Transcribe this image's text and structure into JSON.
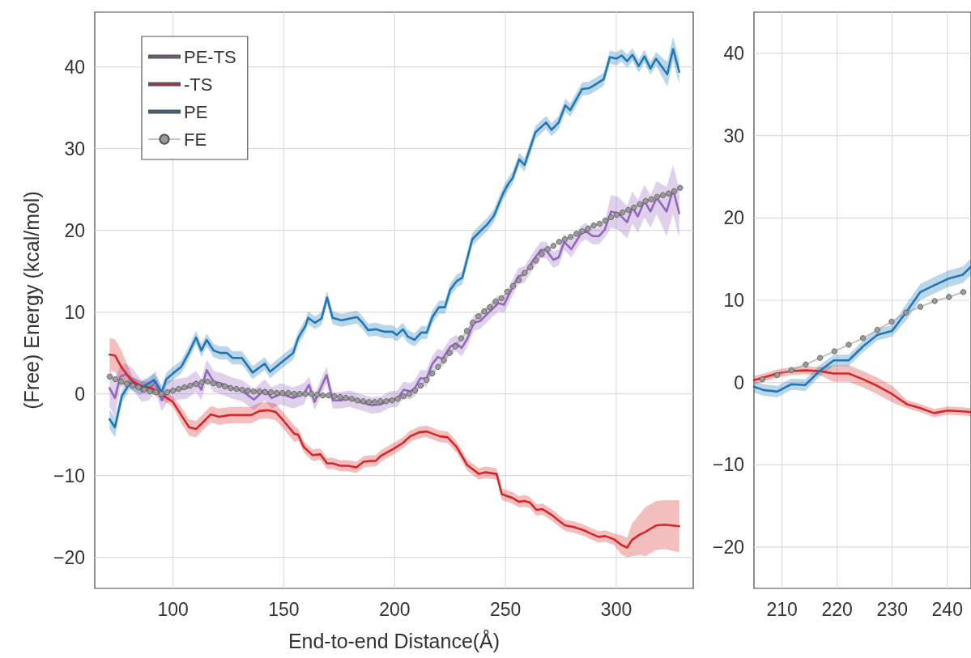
{
  "chart_data": [
    {
      "type": "line",
      "xlabel": "End-to-end Distance(Å)",
      "ylabel": "(Free) Energy (kcal/mol)",
      "xlim": [
        64.7,
        334.7
      ],
      "xticks": [
        100,
        150,
        200,
        250,
        300
      ],
      "ylim": [
        -23.8,
        46.7
      ],
      "yticks": [
        -20,
        -10,
        0,
        10,
        20,
        30,
        40
      ],
      "grid": true,
      "legend": "top left",
      "marker": "none",
      "line_style": "solid",
      "series": [
        {
          "name": "PE-TS",
          "color": "#9467bd",
          "x": [
            71.4,
            73.8,
            76.2,
            78.7,
            81.7,
            86.0,
            89.0,
            92.1,
            94.9,
            97.6,
            101.2,
            106.1,
            110.4,
            112.8,
            115.2,
            118.3,
            122.5,
            126.8,
            131.1,
            136.5,
            141.4,
            144.5,
            148.7,
            154.2,
            159,
            161.4,
            163.9,
            166.3,
            169.3,
            172.1,
            175.5,
            179.6,
            184.6,
            189.6,
            193.7,
            197.8,
            201.2,
            204.1,
            207,
            209.1,
            211.6,
            214.4,
            216.9,
            219.4,
            221.6,
            225.2,
            227.7,
            230.2,
            232.7,
            235.7,
            238.5,
            243.4,
            246.8,
            249.3,
            251.3,
            255.8,
            258.6,
            261.9,
            265.9,
            268.3,
            271.6,
            274,
            276.5,
            279.7,
            283.8,
            286.2,
            289.4,
            292.2,
            294.8,
            297.6,
            300.8,
            304.9,
            307.3,
            309.7,
            312.7,
            315.4,
            318.2,
            322.7,
            325.6,
            328.4
          ],
          "values": [
            0.7,
            -0.5,
            2.1,
            2.4,
            1.8,
            0.3,
            0.5,
            1.5,
            -0.8,
            0.3,
            0.5,
            0.7,
            1.5,
            0.5,
            2.9,
            1.5,
            1.2,
            0.7,
            0.4,
            -0.7,
            0.5,
            -0.5,
            0,
            -0.5,
            0,
            1.1,
            -1.0,
            0.5,
            2.3,
            -0.8,
            -0.8,
            -0.6,
            -1.0,
            -1.4,
            -1.3,
            -0.7,
            -0.6,
            0.5,
            0.3,
            0.7,
            1.9,
            1.9,
            3.6,
            4.5,
            4.3,
            5.8,
            6.2,
            5.6,
            6.7,
            8.7,
            8.9,
            10.2,
            11.1,
            10.9,
            12.0,
            14.4,
            14.6,
            16.1,
            17.6,
            17.6,
            16.4,
            16.7,
            18.6,
            17.7,
            19.5,
            19.9,
            19.3,
            19.3,
            20.1,
            22.3,
            22.1,
            21.0,
            22.8,
            21.7,
            23.6,
            22.3,
            24.0,
            22.3,
            25.0,
            22.1
          ],
          "upper": [
            3.0,
            1.8,
            3.4,
            3.7,
            3.1,
            1.6,
            1.8,
            2.8,
            0.5,
            1.6,
            1.8,
            2.0,
            2.8,
            1.8,
            4.2,
            2.8,
            2.5,
            2.0,
            1.7,
            0.6,
            1.8,
            0.8,
            1.3,
            0.8,
            1.3,
            2.1,
            0,
            1.5,
            3.3,
            0.2,
            0.2,
            0.4,
            0,
            -0.4,
            -0.3,
            0.3,
            0.4,
            1.5,
            1.3,
            1.7,
            2.9,
            2.9,
            4.6,
            5.5,
            5.3,
            6.8,
            7.2,
            6.6,
            7.7,
            9.7,
            9.9,
            11.2,
            12.1,
            11.9,
            13.0,
            15.4,
            15.6,
            17.1,
            18.6,
            18.6,
            17.4,
            17.7,
            19.6,
            18.7,
            20.5,
            20.9,
            20.3,
            20.3,
            21.1,
            24.3,
            24.1,
            23.0,
            24.8,
            23.7,
            25.6,
            24.3,
            26.0,
            25.3,
            28.0,
            25.1
          ],
          "lower": [
            -1.6,
            -2.8,
            0.8,
            1.1,
            0.5,
            -1.0,
            -0.8,
            0.2,
            -2.1,
            -1.0,
            -0.8,
            -0.6,
            0.2,
            -0.8,
            1.6,
            0.2,
            -0.1,
            -0.6,
            -0.9,
            -2.0,
            -0.8,
            -1.8,
            -1.3,
            -1.8,
            -1.3,
            0.1,
            -2.0,
            -0.5,
            1.3,
            -1.8,
            -1.8,
            -1.6,
            -2.0,
            -2.4,
            -2.3,
            -1.7,
            -1.6,
            -0.5,
            -0.7,
            -0.3,
            0.9,
            0.9,
            2.6,
            3.5,
            3.3,
            4.8,
            5.2,
            4.6,
            5.7,
            7.7,
            7.9,
            9.2,
            10.1,
            9.9,
            11.0,
            13.4,
            13.6,
            15.1,
            16.6,
            16.6,
            15.4,
            15.7,
            17.6,
            16.7,
            18.5,
            18.9,
            18.3,
            18.3,
            19.1,
            20.3,
            20.1,
            19.0,
            20.8,
            19.7,
            21.6,
            20.3,
            22.0,
            19.3,
            22.0,
            19.1
          ]
        },
        {
          "name": "-TS",
          "color": "#d62728",
          "x": [
            71.4,
            73.8,
            76.9,
            81.7,
            85.4,
            90.3,
            94.5,
            100,
            103.7,
            107.3,
            110.4,
            113.4,
            117.1,
            120.7,
            125.6,
            130.5,
            135.3,
            139,
            142.6,
            146.3,
            149.9,
            154.8,
            156.5,
            159,
            163,
            166.5,
            169.5,
            172,
            175.5,
            179,
            182.7,
            186,
            189,
            191.5,
            193.7,
            199.6,
            203.7,
            207,
            211,
            214.5,
            220.4,
            223.8,
            228,
            232.7,
            238,
            241,
            246,
            248.4,
            253,
            256,
            258.6,
            261,
            264,
            266.7,
            270.8,
            274,
            277,
            281,
            285.4,
            288.6,
            292,
            295,
            299,
            302.4,
            304.9,
            307,
            310.6,
            313,
            318,
            322,
            328.4
          ],
          "values": [
            4.8,
            4.7,
            3.2,
            1.5,
            1.0,
            0.7,
            0,
            -1.0,
            -2.6,
            -4.1,
            -4.3,
            -3.5,
            -2.5,
            -2.8,
            -2.6,
            -2.6,
            -2.6,
            -2.1,
            -2.0,
            -2.2,
            -3.3,
            -4.9,
            -5.0,
            -6.5,
            -7.5,
            -7.4,
            -8.5,
            -8.5,
            -8.8,
            -8.8,
            -9.0,
            -8.3,
            -8.2,
            -8.2,
            -7.6,
            -6.7,
            -6.0,
            -5.2,
            -4.7,
            -4.6,
            -5.2,
            -5.3,
            -6.5,
            -8.7,
            -9.8,
            -9.6,
            -9.8,
            -12.3,
            -12.7,
            -13.2,
            -13.1,
            -13.3,
            -14.2,
            -14.1,
            -14.8,
            -15.5,
            -16.1,
            -16.3,
            -16.7,
            -17.1,
            -17.5,
            -17.4,
            -17.8,
            -18.5,
            -18.8,
            -17.9,
            -17.2,
            -16.9,
            -16.1,
            -16.0,
            -16.2
          ],
          "upper": [
            6.8,
            6.7,
            5.2,
            2.1,
            1.6,
            1.3,
            0.6,
            -0.4,
            -1.6,
            -3.1,
            -3.3,
            -2.5,
            -1.5,
            -1.8,
            -1.6,
            -1.6,
            -1.6,
            -1.1,
            -1.0,
            -1.2,
            -2.3,
            -3.9,
            -4.3,
            -5.8,
            -6.8,
            -6.7,
            -7.8,
            -7.8,
            -8.1,
            -8.1,
            -8.3,
            -7.6,
            -7.5,
            -7.5,
            -6.9,
            -6.0,
            -5.3,
            -4.5,
            -4.0,
            -3.9,
            -4.5,
            -4.6,
            -5.8,
            -8.0,
            -9.1,
            -8.9,
            -9.1,
            -11.6,
            -12.0,
            -12.5,
            -12.4,
            -12.6,
            -13.5,
            -13.4,
            -14.1,
            -14.8,
            -15.4,
            -15.6,
            -16.0,
            -16.4,
            -16.8,
            -16.7,
            -17.1,
            -17.3,
            -17.6,
            -15.9,
            -14.7,
            -13.9,
            -13.1,
            -13.0,
            -13.0
          ],
          "lower": [
            2.8,
            2.7,
            1.2,
            0.9,
            0.4,
            0.1,
            -0.6,
            -1.6,
            -3.6,
            -5.1,
            -5.3,
            -4.5,
            -3.5,
            -3.8,
            -3.6,
            -3.6,
            -3.6,
            -3.1,
            -3.0,
            -3.2,
            -4.3,
            -5.9,
            -5.7,
            -7.2,
            -8.2,
            -8.1,
            -9.2,
            -9.2,
            -9.5,
            -9.5,
            -9.7,
            -9.0,
            -8.9,
            -8.9,
            -8.3,
            -7.4,
            -6.7,
            -5.9,
            -5.4,
            -5.3,
            -5.9,
            -6.0,
            -7.2,
            -9.4,
            -10.5,
            -10.3,
            -10.5,
            -13.0,
            -13.4,
            -13.9,
            -13.8,
            -14.0,
            -14.9,
            -14.8,
            -15.5,
            -16.2,
            -16.8,
            -17.0,
            -17.4,
            -17.8,
            -18.2,
            -18.1,
            -18.5,
            -19.7,
            -20.0,
            -19.9,
            -19.7,
            -19.9,
            -19.1,
            -19.0,
            -19.4
          ]
        },
        {
          "name": "PE",
          "color": "#1f77b4",
          "x": [
            71.4,
            73.8,
            76.9,
            80.5,
            85.4,
            91.5,
            94.9,
            97,
            100,
            103.7,
            107.3,
            110.4,
            112.8,
            115.2,
            118.3,
            121.3,
            124.4,
            126.8,
            131.1,
            135.9,
            141.4,
            143.8,
            148.7,
            154.2,
            156.6,
            159.7,
            161,
            164,
            167,
            169.5,
            172,
            176,
            179.5,
            183,
            185.5,
            188,
            191.5,
            195.5,
            199,
            201,
            203.7,
            206,
            209,
            212,
            214.5,
            217,
            220,
            222.7,
            225,
            228,
            230.5,
            235,
            239,
            242,
            244.8,
            248.9,
            251.3,
            253.2,
            256.2,
            258.6,
            263.5,
            268.3,
            270.8,
            274,
            277,
            279.2,
            284.6,
            287.8,
            290.3,
            294.3,
            297.1,
            300,
            302.4,
            304.9,
            307.3,
            310.1,
            312.7,
            315.4,
            317.9,
            323,
            325.6,
            328.4
          ],
          "values": [
            -3.1,
            -4.1,
            -0.3,
            1.3,
            0.7,
            1.7,
            0.2,
            1.8,
            2.5,
            3.3,
            5.1,
            6.9,
            5.3,
            6.6,
            5.3,
            5.0,
            5.0,
            4.4,
            4.4,
            2.6,
            3.7,
            2.7,
            3.8,
            5.0,
            6.9,
            8.3,
            9.3,
            8.7,
            9.2,
            11.8,
            9.3,
            9.0,
            9.2,
            9.4,
            8.7,
            7.8,
            7.9,
            7.6,
            7.6,
            7.2,
            7.9,
            7.0,
            6.6,
            7.5,
            7.5,
            9.4,
            10.6,
            10.6,
            12.7,
            13.8,
            14.2,
            18.9,
            20.0,
            20.8,
            21.8,
            24.5,
            25.7,
            26.4,
            28.7,
            28.0,
            32.0,
            33.2,
            32.3,
            33.2,
            35.3,
            34.7,
            37.3,
            37.4,
            37.8,
            38.5,
            41.2,
            41.0,
            41.4,
            40.7,
            41.5,
            40.1,
            41.3,
            39.8,
            41.0,
            39.1,
            42.2,
            39.4
          ],
          "upper": [
            -1.9,
            -2.9,
            0.5,
            2.1,
            1.5,
            2.5,
            1.0,
            2.6,
            3.3,
            4.1,
            5.9,
            7.7,
            6.1,
            7.4,
            6.1,
            5.8,
            5.8,
            5.2,
            5.2,
            3.4,
            4.5,
            3.5,
            4.6,
            5.8,
            7.7,
            9.1,
            10.1,
            9.5,
            10.0,
            12.6,
            10.1,
            9.8,
            10.0,
            10.2,
            9.5,
            8.6,
            8.7,
            8.4,
            8.4,
            8.0,
            8.7,
            7.8,
            7.4,
            8.3,
            8.3,
            10.2,
            11.4,
            11.4,
            13.5,
            14.6,
            15.0,
            19.7,
            20.8,
            21.6,
            22.6,
            25.3,
            26.5,
            27.2,
            29.5,
            28.8,
            32.8,
            34.0,
            33.1,
            34.0,
            36.1,
            35.5,
            38.1,
            38.2,
            38.6,
            39.3,
            42.0,
            41.8,
            42.2,
            41.5,
            42.3,
            40.9,
            42.1,
            40.6,
            41.8,
            40.6,
            43.7,
            40.9
          ],
          "lower": [
            -4.3,
            -5.3,
            -1.1,
            0.5,
            -0.1,
            0.9,
            -0.6,
            1.0,
            1.7,
            2.5,
            4.3,
            6.1,
            4.5,
            5.8,
            4.5,
            4.2,
            4.2,
            3.6,
            3.6,
            1.8,
            2.9,
            1.9,
            3.0,
            4.2,
            6.1,
            7.5,
            8.5,
            7.9,
            8.4,
            11.0,
            8.5,
            8.2,
            8.4,
            8.6,
            7.9,
            7.0,
            7.1,
            6.8,
            6.8,
            6.4,
            7.1,
            6.2,
            5.8,
            6.7,
            6.7,
            8.6,
            9.8,
            9.8,
            11.9,
            13.0,
            13.4,
            18.1,
            19.2,
            20.0,
            21.0,
            23.7,
            24.9,
            25.6,
            27.9,
            27.2,
            31.2,
            32.4,
            31.5,
            32.4,
            34.5,
            33.9,
            36.5,
            36.6,
            37.0,
            37.7,
            40.4,
            40.2,
            40.6,
            39.9,
            40.7,
            39.3,
            40.5,
            39.0,
            40.2,
            37.6,
            40.7,
            37.9
          ]
        },
        {
          "name": "FE",
          "color": "#9a9a9a",
          "marker": "circle",
          "x": [
            71.4,
            74.0,
            76.6,
            79.2,
            81.8,
            84.4,
            87.0,
            89.6,
            92.2,
            94.8,
            97.4,
            100.0,
            102.6,
            105.2,
            107.8,
            110.4,
            113.0,
            115.6,
            118.2,
            120.8,
            123.4,
            126.0,
            128.6,
            131.2,
            133.8,
            136.4,
            139.0,
            141.6,
            144.2,
            146.8,
            149.4,
            152.0,
            154.6,
            157.2,
            159.8,
            162.4,
            165.0,
            167.6,
            170.2,
            172.8,
            175.4,
            178.0,
            180.6,
            183.2,
            185.8,
            188.4,
            191.0,
            193.6,
            196.2,
            198.8,
            201.4,
            204.0,
            206.6,
            209.2,
            211.8,
            214.4,
            217.0,
            219.6,
            222.2,
            224.8,
            227.4,
            230.0,
            232.6,
            235.2,
            237.8,
            240.4,
            243.0,
            245.6,
            248.2,
            250.8,
            253.4,
            256.0,
            258.6,
            261.2,
            263.8,
            266.4,
            269.0,
            271.6,
            274.2,
            276.8,
            279.4,
            282.0,
            284.6,
            287.2,
            289.8,
            292.4,
            295.0,
            297.6,
            300.2,
            302.8,
            305.4,
            308.0,
            310.6,
            313.2,
            315.8,
            318.4,
            321.0,
            323.6,
            326.2,
            328.8
          ],
          "values": [
            2.1,
            1.8,
            1.5,
            1.2,
            1.0,
            0.8,
            0.5,
            0.3,
            0.2,
            0,
            0.2,
            0.4,
            0.6,
            0.8,
            1.0,
            1.2,
            1.4,
            1.5,
            1.3,
            1.1,
            0.9,
            0.7,
            0.6,
            0.5,
            0.4,
            0.3,
            0.3,
            0.2,
            0.2,
            0.1,
            0.1,
            0.1,
            0,
            0,
            0,
            0,
            -0.1,
            -0.2,
            -0.2,
            -0.3,
            -0.4,
            -0.5,
            -0.6,
            -0.8,
            -0.9,
            -1.0,
            -1.0,
            -0.9,
            -0.9,
            -0.8,
            -0.6,
            -0.3,
            0,
            0.4,
            1.0,
            1.7,
            2.5,
            3.3,
            4.1,
            5.0,
            5.8,
            6.8,
            7.7,
            8.7,
            9.5,
            10.1,
            10.6,
            11.3,
            11.7,
            12.5,
            13.2,
            13.9,
            14.8,
            15.5,
            16.3,
            17.1,
            17.7,
            18.1,
            18.6,
            18.9,
            19.2,
            19.6,
            19.9,
            20.2,
            20.6,
            20.8,
            21.2,
            21.6,
            21.9,
            22.2,
            22.5,
            22.8,
            23.2,
            23.6,
            23.8,
            24.1,
            24.3,
            24.5,
            24.8,
            25.2
          ]
        }
      ]
    },
    {
      "type": "line",
      "xlim": [
        204.9,
        244.3
      ],
      "xticks": [
        210,
        220,
        230,
        240
      ],
      "ylim": [
        -25,
        45
      ],
      "yticks": [
        -20,
        -10,
        0,
        10,
        20,
        30,
        40
      ],
      "grid": true,
      "marker": "none",
      "line_style": "solid",
      "series": [
        {
          "color": "#d62728",
          "x": [
            204.9,
            206.6,
            209.1,
            211.7,
            214.2,
            216.8,
            219.4,
            222.1,
            224.7,
            227.3,
            230,
            232.6,
            235.1,
            237.6,
            240.1,
            242.8,
            244.3
          ],
          "values": [
            0.3,
            0.6,
            1.1,
            1.4,
            1.5,
            1.4,
            1.1,
            1.1,
            0.4,
            -0.4,
            -1.4,
            -2.6,
            -3.1,
            -3.7,
            -3.4,
            -3.5,
            -3.6
          ],
          "upper": [
            0.8,
            1.1,
            1.6,
            1.9,
            2.0,
            1.9,
            2.1,
            2.1,
            1.4,
            0.6,
            -0.4,
            -2.1,
            -2.6,
            -3.2,
            -2.9,
            -3.0,
            -3.1
          ],
          "lower": [
            -0.2,
            0.1,
            0.6,
            0.9,
            1.0,
            0.9,
            0.1,
            0.1,
            -0.6,
            -1.4,
            -2.4,
            -3.1,
            -3.6,
            -4.2,
            -3.9,
            -4.0,
            -4.1
          ]
        },
        {
          "color": "#1f77b4",
          "x": [
            204.9,
            206.6,
            209.1,
            211.7,
            214.2,
            216.8,
            219.4,
            222.1,
            224.7,
            227.3,
            230,
            232.6,
            235.1,
            237.6,
            240.1,
            242.8,
            244.3
          ],
          "values": [
            -0.5,
            -0.9,
            -1.1,
            -0.2,
            -0.3,
            1.4,
            2.7,
            2.7,
            4.4,
            5.8,
            6.3,
            8.6,
            11.0,
            11.8,
            12.6,
            13.1,
            14.1
          ],
          "upper": [
            0.2,
            -0.2,
            -0.4,
            0.5,
            0.4,
            2.1,
            3.4,
            3.4,
            5.1,
            6.5,
            7.0,
            9.6,
            12.0,
            12.8,
            13.6,
            14.1,
            15.1
          ],
          "lower": [
            -1.2,
            -1.6,
            -1.8,
            -0.9,
            -1.0,
            0.7,
            2.0,
            2.0,
            3.7,
            5.1,
            5.6,
            7.6,
            10.0,
            10.8,
            11.6,
            12.1,
            13.1
          ]
        },
        {
          "color": "#9a9a9a",
          "marker": "circle",
          "x": [
            206.4,
            209.1,
            211.7,
            214.3,
            216.9,
            219.5,
            222.1,
            224.7,
            227.3,
            229.9,
            232.5,
            235.1,
            237.7,
            240.3,
            242.9
          ],
          "values": [
            0.4,
            0.9,
            1.5,
            2.2,
            3.0,
            3.8,
            4.6,
            5.4,
            6.4,
            7.4,
            8.5,
            9.2,
            9.9,
            10.4,
            11.0
          ]
        }
      ]
    }
  ]
}
